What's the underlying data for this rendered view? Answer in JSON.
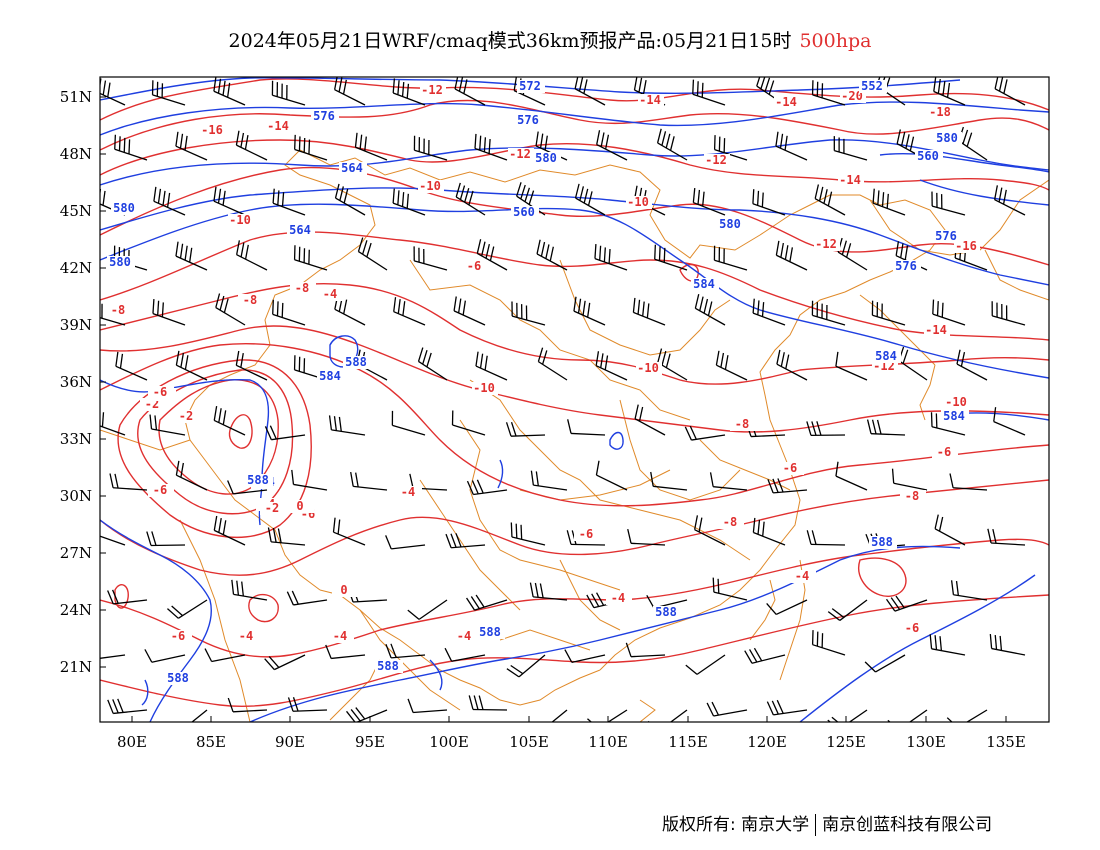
{
  "title": {
    "main": "2024年05月21日WRF/cmaq模式36km预报产品:05月21日15时",
    "level": "500hpa"
  },
  "axes": {
    "x_ticks": [
      "80E",
      "85E",
      "90E",
      "95E",
      "100E",
      "105E",
      "110E",
      "115E",
      "120E",
      "125E",
      "130E",
      "135E"
    ],
    "y_ticks": [
      "51N",
      "48N",
      "45N",
      "42N",
      "39N",
      "36N",
      "33N",
      "30N",
      "27N",
      "24N",
      "21N"
    ]
  },
  "colors": {
    "temperature": "#e03030",
    "geopotential": "#1f3fe0",
    "border": "#e08a2a",
    "wind": "#000000"
  },
  "contour_labels": {
    "temperature": [
      "-12",
      "-14",
      "-16",
      "-14",
      "-18",
      "-20",
      "-12",
      "-14",
      "-12",
      "-10",
      "-16",
      "-14",
      "-12",
      "-10",
      "-8",
      "-6",
      "-8",
      "-6",
      "-8",
      "-10",
      "-10",
      "-12",
      "-14",
      "-10",
      "-8",
      "-10",
      "-8",
      "-6",
      "-4",
      "-6",
      "-2",
      "-2",
      "-4",
      "-6",
      "-6",
      "-2",
      "-2",
      "0",
      "-6",
      "-4",
      "-8",
      "-4",
      "-4",
      "-4",
      "-4",
      "-4",
      "-6",
      "0",
      "-6",
      "-6"
    ],
    "geopotential": [
      "572",
      "552",
      "576",
      "576",
      "580",
      "580",
      "560",
      "564",
      "580",
      "564",
      "580",
      "576",
      "580",
      "576",
      "584",
      "560",
      "584",
      "588",
      "584",
      "584",
      "588",
      "588",
      "588",
      "588",
      "588",
      "588",
      "584"
    ]
  },
  "copyright": {
    "left": "版权所有: 南京大学",
    "right": "南京创蓝科技有限公司"
  }
}
